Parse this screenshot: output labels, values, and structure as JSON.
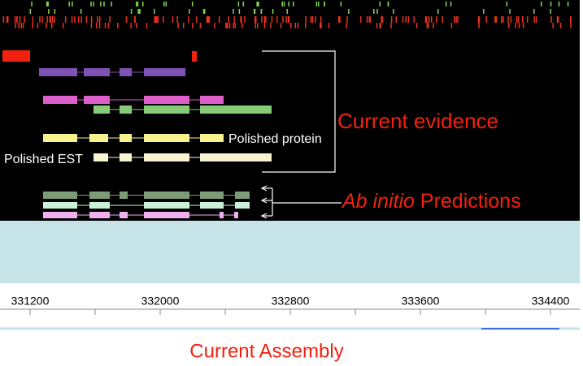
{
  "labels": {
    "evidence": "Current evidence",
    "ab_initio": "Ab initio",
    "predictions": "Predictions",
    "polished_protein": "Polished protein",
    "polished_est": "Polished EST",
    "assembly": "Current Assembly"
  },
  "ruler": {
    "ticks": [
      331200,
      332000,
      332800,
      333600,
      334400
    ]
  }
}
